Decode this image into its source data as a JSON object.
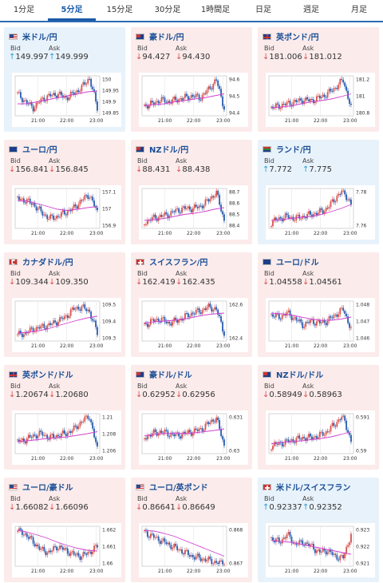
{
  "tabs": [
    "1分足",
    "5分足",
    "15分足",
    "30分足",
    "1時間足",
    "日足",
    "週足",
    "月足"
  ],
  "active_tab": 1,
  "labels": {
    "bid": "Bid",
    "ask": "Ask"
  },
  "colors": {
    "up": "#2a9fd6",
    "down": "#d9534f",
    "ma": "#d040d0"
  },
  "x_ticks": [
    "21:00",
    "22:00",
    "23:00"
  ],
  "cards": [
    {
      "name": "米ドル/円",
      "flag": "us",
      "dir": "up",
      "bid": "149.997",
      "ask": "149.999",
      "yticks": [
        "150",
        "149.95",
        "149.9",
        "149.85"
      ],
      "trend": [
        0.55,
        0.35,
        0.2,
        0.4,
        0.5,
        0.55,
        0.45,
        0.55,
        0.7,
        0.95,
        0.2
      ],
      "ma": [
        0.3,
        0.3,
        0.35,
        0.4,
        0.45,
        0.5,
        0.55,
        0.6,
        0.62
      ]
    },
    {
      "name": "豪ドル/円",
      "flag": "au",
      "dir": "down",
      "bid": "94.427",
      "ask": "94.430",
      "yticks": [
        "94.6",
        "94.5",
        "94.4"
      ],
      "trend": [
        0.25,
        0.3,
        0.4,
        0.35,
        0.4,
        0.45,
        0.5,
        0.45,
        0.65,
        0.9,
        0.2
      ],
      "ma": [
        0.25,
        0.28,
        0.3,
        0.35,
        0.38,
        0.42,
        0.45,
        0.5,
        0.55
      ]
    },
    {
      "name": "英ポンド/円",
      "flag": "gb",
      "dir": "down",
      "bid": "181.006",
      "ask": "181.012",
      "yticks": [
        "181.2",
        "181",
        "180.8"
      ],
      "trend": [
        0.2,
        0.25,
        0.3,
        0.35,
        0.4,
        0.38,
        0.45,
        0.55,
        0.7,
        0.9,
        0.2
      ],
      "ma": [
        0.2,
        0.22,
        0.25,
        0.3,
        0.35,
        0.38,
        0.42,
        0.48,
        0.55
      ]
    },
    {
      "name": "ユーロ/円",
      "flag": "eu",
      "dir": "down",
      "bid": "156.841",
      "ask": "156.845",
      "yticks": [
        "157.1",
        "157",
        "156.9"
      ],
      "trend": [
        0.75,
        0.7,
        0.6,
        0.4,
        0.25,
        0.3,
        0.4,
        0.5,
        0.7,
        0.85,
        0.4
      ],
      "ma": [
        0.7,
        0.68,
        0.62,
        0.55,
        0.48,
        0.45,
        0.48,
        0.52,
        0.55
      ]
    },
    {
      "name": "NZドル/円",
      "flag": "nz",
      "dir": "down",
      "bid": "88.431",
      "ask": "88.438",
      "yticks": [
        "88.7",
        "88.6",
        "88.5",
        "88.4"
      ],
      "trend": [
        0.15,
        0.25,
        0.3,
        0.35,
        0.45,
        0.5,
        0.5,
        0.55,
        0.7,
        0.9,
        0.2
      ],
      "ma": [
        0.2,
        0.22,
        0.25,
        0.3,
        0.35,
        0.38,
        0.42,
        0.48,
        0.52
      ]
    },
    {
      "name": "ランド/円",
      "flag": "za",
      "dir": "up",
      "bid": "7.772",
      "ask": "7.775",
      "yticks": [
        "7.78",
        "7.76"
      ],
      "trend": [
        0.15,
        0.25,
        0.3,
        0.25,
        0.3,
        0.35,
        0.4,
        0.5,
        0.75,
        0.95,
        0.6
      ],
      "ma": [
        0.2,
        0.22,
        0.25,
        0.28,
        0.3,
        0.35,
        0.42,
        0.5,
        0.6
      ]
    },
    {
      "name": "カナダドル/円",
      "flag": "ca",
      "dir": "down",
      "bid": "109.344",
      "ask": "109.350",
      "yticks": [
        "109.5",
        "109.4",
        "109.3"
      ],
      "trend": [
        0.15,
        0.2,
        0.3,
        0.35,
        0.4,
        0.5,
        0.6,
        0.8,
        0.85,
        0.75,
        0.2
      ],
      "ma": [
        0.2,
        0.22,
        0.25,
        0.3,
        0.38,
        0.45,
        0.52,
        0.58,
        0.62
      ]
    },
    {
      "name": "スイスフラン/円",
      "flag": "ch",
      "dir": "down",
      "bid": "162.419",
      "ask": "162.435",
      "yticks": [
        "162.6",
        "162.4"
      ],
      "trend": [
        0.4,
        0.5,
        0.55,
        0.45,
        0.5,
        0.6,
        0.7,
        0.75,
        0.85,
        0.8,
        0.2
      ],
      "ma": [
        0.45,
        0.48,
        0.5,
        0.52,
        0.55,
        0.6,
        0.65,
        0.68,
        0.7
      ]
    },
    {
      "name": "ユーロ/ドル",
      "flag": "eu",
      "dir": "down",
      "bid": "1.04558",
      "ask": "1.04561",
      "yticks": [
        "1.048",
        "1.047",
        "1.046"
      ],
      "trend": [
        0.65,
        0.6,
        0.7,
        0.55,
        0.4,
        0.5,
        0.45,
        0.5,
        0.65,
        0.8,
        0.3
      ],
      "ma": [
        0.7,
        0.68,
        0.65,
        0.6,
        0.55,
        0.52,
        0.52,
        0.55,
        0.6
      ]
    },
    {
      "name": "英ポンド/ドル",
      "flag": "gb",
      "dir": "down",
      "bid": "1.20674",
      "ask": "1.20680",
      "yticks": [
        "1.21",
        "1.208",
        "1.206"
      ],
      "trend": [
        0.3,
        0.35,
        0.45,
        0.5,
        0.4,
        0.45,
        0.5,
        0.6,
        0.8,
        0.95,
        0.1
      ],
      "ma": [
        0.3,
        0.32,
        0.35,
        0.38,
        0.4,
        0.42,
        0.46,
        0.5,
        0.55
      ]
    },
    {
      "name": "豪ドル/ドル",
      "flag": "au",
      "dir": "down",
      "bid": "0.62952",
      "ask": "0.62956",
      "yticks": [
        "0.631",
        "0.63"
      ],
      "trend": [
        0.4,
        0.5,
        0.55,
        0.5,
        0.45,
        0.5,
        0.55,
        0.6,
        0.75,
        0.9,
        0.2
      ],
      "ma": [
        0.45,
        0.48,
        0.5,
        0.52,
        0.5,
        0.52,
        0.55,
        0.58,
        0.62
      ]
    },
    {
      "name": "NZドル/ドル",
      "flag": "nz",
      "dir": "down",
      "bid": "0.58949",
      "ask": "0.58963",
      "yticks": [
        "0.591",
        "0.59"
      ],
      "trend": [
        0.2,
        0.25,
        0.3,
        0.35,
        0.4,
        0.4,
        0.45,
        0.55,
        0.75,
        0.95,
        0.3
      ],
      "ma": [
        0.25,
        0.28,
        0.3,
        0.32,
        0.35,
        0.38,
        0.42,
        0.48,
        0.55
      ]
    },
    {
      "name": "ユーロ/豪ドル",
      "flag": "us",
      "dir": "down",
      "bid": "1.66082",
      "ask": "1.66096",
      "yticks": [
        "1.662",
        "1.661",
        "1.66"
      ],
      "trend": [
        0.9,
        0.8,
        0.6,
        0.4,
        0.35,
        0.5,
        0.4,
        0.3,
        0.25,
        0.35,
        0.5
      ],
      "ma": [
        0.9,
        0.85,
        0.78,
        0.7,
        0.6,
        0.52,
        0.45,
        0.4,
        0.38
      ]
    },
    {
      "name": "ユーロ/英ポンド",
      "flag": "us",
      "dir": "down",
      "bid": "0.86641",
      "ask": "0.86649",
      "yticks": [
        "0.868",
        "0.867"
      ],
      "trend": [
        0.85,
        0.75,
        0.65,
        0.55,
        0.45,
        0.35,
        0.25,
        0.2,
        0.15,
        0.1,
        0.05
      ],
      "ma": [
        0.9,
        0.88,
        0.82,
        0.75,
        0.65,
        0.55,
        0.45,
        0.35,
        0.25
      ]
    },
    {
      "name": "米ドル/スイスフラン",
      "flag": "ch",
      "dir": "up",
      "bid": "0.92337",
      "ask": "0.92352",
      "yticks": [
        "0.923",
        "0.922",
        "0.921"
      ],
      "trend": [
        0.7,
        0.6,
        0.8,
        0.55,
        0.6,
        0.5,
        0.35,
        0.4,
        0.25,
        0.2,
        0.8
      ],
      "ma": [
        0.65,
        0.62,
        0.6,
        0.55,
        0.5,
        0.45,
        0.4,
        0.35,
        0.3
      ]
    }
  ]
}
